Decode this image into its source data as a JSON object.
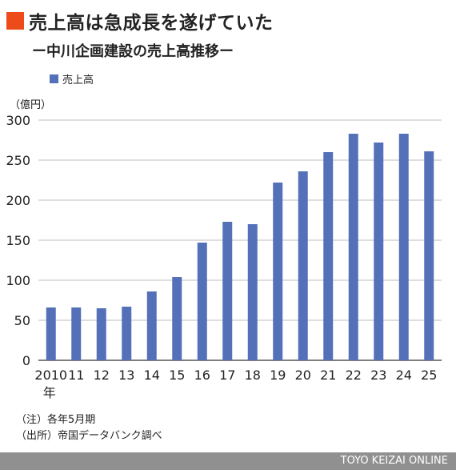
{
  "title": "売上高は急成長を遂げていた",
  "subtitle": "ー中川企画建設の売上高推移ー",
  "unit_label": "（億円）",
  "notes": [
    "（注）各年5月期",
    "（出所）帝国データバンク調べ"
  ],
  "footer": "TOYO KEIZAI ONLINE",
  "colors": {
    "bar": "#5470b8",
    "accent": "#ee4b1a",
    "footer_bg": "#909090"
  },
  "chart_data": {
    "type": "bar",
    "categories": [
      "2010",
      "11",
      "12",
      "13",
      "14",
      "15",
      "16",
      "17",
      "18",
      "19",
      "20",
      "21",
      "22",
      "23",
      "24",
      "25"
    ],
    "first_category_suffix": "年",
    "series": [
      {
        "name": "売上高",
        "values": [
          66,
          66,
          65,
          67,
          86,
          104,
          147,
          173,
          170,
          222,
          236,
          260,
          283,
          272,
          283,
          261
        ]
      }
    ],
    "ylim": [
      0,
      300
    ],
    "yticks": [
      0,
      50,
      100,
      150,
      200,
      250,
      300
    ],
    "grid": true,
    "legend_position": "top-left"
  }
}
